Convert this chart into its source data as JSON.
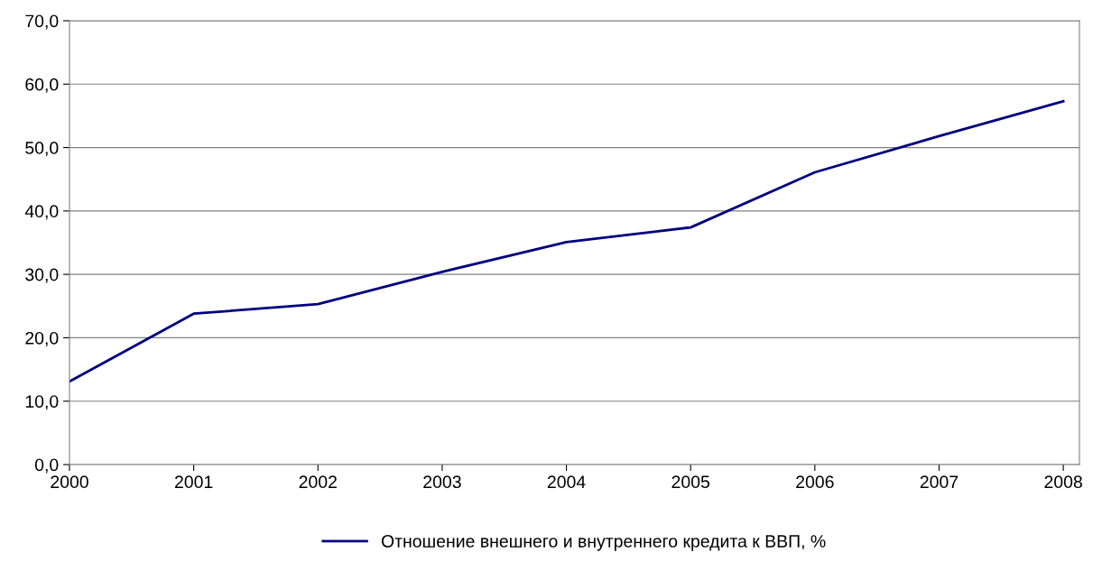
{
  "chart_data": {
    "type": "line",
    "categories": [
      "2000",
      "2001",
      "2002",
      "2003",
      "2004",
      "2005",
      "2006",
      "2007",
      "2008"
    ],
    "series": [
      {
        "name": "Отношение внешнего и внутреннего кредита к ВВП, %",
        "color": "#000080",
        "values": [
          13.1,
          23.8,
          25.3,
          30.4,
          35.1,
          37.4,
          46.1,
          51.8,
          57.3
        ]
      }
    ],
    "ylim": [
      0,
      70
    ],
    "yticks": [
      {
        "value": 0,
        "label": "0,0"
      },
      {
        "value": 10,
        "label": "10,0"
      },
      {
        "value": 20,
        "label": "20,0"
      },
      {
        "value": 30,
        "label": "30,0"
      },
      {
        "value": 40,
        "label": "40,0"
      },
      {
        "value": 50,
        "label": "50,0"
      },
      {
        "value": 60,
        "label": "60,0"
      },
      {
        "value": 70,
        "label": "70,0"
      }
    ],
    "grid": "y",
    "legend": "bottom",
    "marker": "none",
    "line_style": "solid"
  }
}
